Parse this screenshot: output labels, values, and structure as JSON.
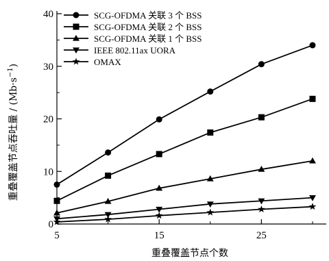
{
  "chart_data": {
    "type": "line",
    "xlabel": "重叠覆盖节点个数",
    "ylabel_text": "重叠覆盖节点吞吐量 / (Mb·s",
    "ylabel_sup": "−1",
    "ylabel_close": ")",
    "xlim": [
      5,
      30
    ],
    "ylim": [
      0,
      40
    ],
    "xticks": [
      5,
      15,
      25
    ],
    "xticks_minor": [
      10,
      20,
      30
    ],
    "yticks": [
      0,
      10,
      20,
      30,
      40
    ],
    "yticks_minor": [
      5,
      15,
      25,
      35
    ],
    "legend_position": "top-left",
    "x": [
      5,
      10,
      15,
      20,
      25,
      30
    ],
    "series": [
      {
        "name": "SCG-OFDMA 关联 3 个 BSS",
        "marker": "circle",
        "values": [
          7.5,
          13.6,
          19.9,
          25.2,
          30.4,
          34.0
        ]
      },
      {
        "name": "SCG-OFDMA 关联 2 个 BSS",
        "marker": "square",
        "values": [
          4.4,
          9.2,
          13.3,
          17.4,
          20.3,
          23.8
        ]
      },
      {
        "name": "SCG-OFDMA 关联 1 个 BSS",
        "marker": "triangle-up",
        "values": [
          2.1,
          4.3,
          6.8,
          8.6,
          10.4,
          12.0
        ]
      },
      {
        "name": "IEEE 802.11ax UORA",
        "marker": "triangle-down",
        "values": [
          1.0,
          1.8,
          2.8,
          3.8,
          4.4,
          5.0
        ]
      },
      {
        "name": "OMAX",
        "marker": "star",
        "values": [
          0.4,
          0.9,
          1.6,
          2.2,
          2.8,
          3.3
        ]
      }
    ]
  }
}
